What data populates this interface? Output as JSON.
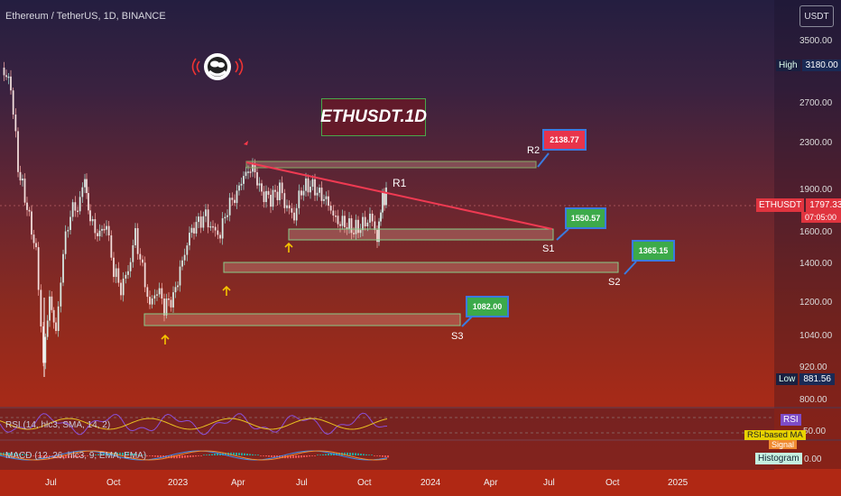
{
  "header": {
    "symbol_line": "Ethereum / TetherUS, 1D, BINANCE"
  },
  "title_box": {
    "text": "ETHUSDT.1D"
  },
  "currency": {
    "label": "USDT"
  },
  "price_axis": {
    "ticks": [
      "3500.00",
      "3180.00",
      "2700.00",
      "2300.00",
      "1900.00",
      "1600.00",
      "1400.00",
      "1200.00",
      "1040.00",
      "920.00",
      "800.00"
    ]
  },
  "markers": {
    "high_label": "High",
    "high_value": "3180.00",
    "low_label": "Low",
    "low_value": "881.56",
    "last_label": "ETHUSDT",
    "last_value": "1797.33",
    "countdown": "07:05:00"
  },
  "levels": {
    "r1": "R1",
    "r2": "R2",
    "s1": "S1",
    "s2": "S2",
    "s3": "S3",
    "r2_price": "2138.77",
    "s1_price": "1550.57",
    "s2_price": "1365.15",
    "s3_price": "1082.00"
  },
  "rsi": {
    "legend": "RSI (14, hlc3, SMA, 14, 2)",
    "tag": "RSI",
    "ma_tag": "RSI-based MA",
    "axis": "50.00"
  },
  "macd": {
    "legend": "MACD (12, 26, hlc3, 9, EMA, EMA)",
    "signal_tag": "Signal",
    "hist_tag": "Histogram",
    "axis": "0.00"
  },
  "time_axis": {
    "labels": [
      "Jul",
      "Oct",
      "2023",
      "Apr",
      "Jul",
      "Oct",
      "2024",
      "Apr",
      "Jul",
      "Oct",
      "2025"
    ]
  },
  "colors": {
    "green": "#4caf50",
    "red": "#f23645",
    "trendline": "#e8344b",
    "zone_fill": "rgba(255,190,170,0.22)",
    "zone_border": "#7fc07a"
  }
}
